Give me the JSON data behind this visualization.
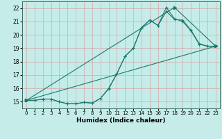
{
  "bg_color": "#c5ece8",
  "line_color": "#1a7a6e",
  "grid_color": "#d4a8a8",
  "xlabel": "Humidex (Indice chaleur)",
  "x_ticks": [
    0,
    1,
    2,
    3,
    4,
    5,
    6,
    7,
    8,
    9,
    10,
    11,
    12,
    13,
    14,
    15,
    16,
    17,
    18,
    19,
    20,
    21,
    22,
    23
  ],
  "y_ticks": [
    15,
    16,
    17,
    18,
    19,
    20,
    21,
    22
  ],
  "xlim": [
    -0.5,
    23.5
  ],
  "ylim": [
    14.5,
    22.5
  ],
  "line1_x": [
    0,
    1,
    2,
    3,
    4,
    5,
    6,
    7,
    8,
    9,
    10,
    11,
    12,
    13,
    14,
    15,
    16,
    17,
    18,
    19,
    20,
    21,
    22,
    23
  ],
  "line1_y": [
    15.1,
    15.1,
    15.2,
    15.2,
    15.0,
    14.85,
    14.85,
    14.95,
    14.9,
    15.25,
    15.95,
    17.1,
    18.4,
    19.0,
    20.55,
    21.1,
    20.7,
    21.75,
    21.15,
    21.1,
    20.35,
    19.35,
    19.15,
    19.15
  ],
  "line2_x": [
    0,
    1,
    2,
    3,
    4,
    5,
    6,
    7,
    8,
    9,
    10,
    11,
    12,
    13,
    14,
    15,
    16,
    17,
    18,
    19,
    20,
    21,
    22,
    23
  ],
  "line2_y": [
    15.1,
    15.1,
    15.2,
    15.2,
    15.0,
    14.85,
    14.85,
    14.95,
    14.9,
    15.25,
    16.0,
    17.1,
    18.4,
    19.0,
    20.55,
    21.1,
    20.7,
    22.05,
    21.2,
    21.0,
    20.3,
    19.3,
    19.15,
    19.15
  ],
  "line3_x": [
    0,
    23
  ],
  "line3_y": [
    15.1,
    19.15
  ],
  "line4_x": [
    0,
    18,
    23
  ],
  "line4_y": [
    15.1,
    22.05,
    19.15
  ]
}
